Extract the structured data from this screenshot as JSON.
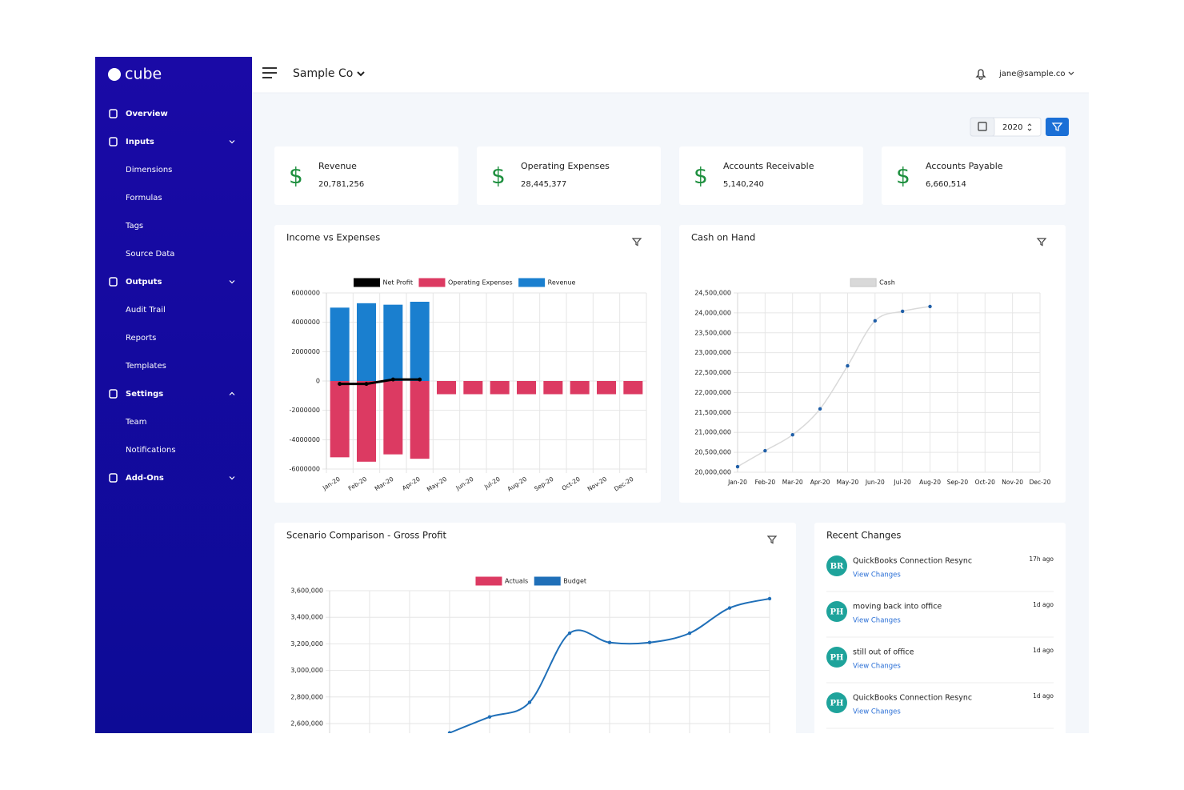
{
  "sidebar": {
    "logo": "cube",
    "sections": [
      {
        "label": "Overview"
      },
      {
        "label": "Inputs",
        "caret": "down",
        "children": [
          "Dimensions",
          "Formulas",
          "Tags",
          "Source Data"
        ]
      },
      {
        "label": "Outputs",
        "caret": "down",
        "children": [
          "Audit Trail",
          "Reports",
          "Templates"
        ]
      },
      {
        "label": "Settings",
        "caret": "up",
        "children": [
          "Team",
          "Notifications"
        ]
      },
      {
        "label": "Add-Ons",
        "caret": "down"
      }
    ]
  },
  "header": {
    "company": "Sample Co",
    "user": "jane@sample.co"
  },
  "toolbar": {
    "year": "2020"
  },
  "kpis": [
    {
      "symbol": "$",
      "label": "Revenue",
      "value": "20,781,256"
    },
    {
      "symbol": "$",
      "label": "Operating Expenses",
      "value": "28,445,377"
    },
    {
      "symbol": "$",
      "label": "Accounts Receivable",
      "value": "5,140,240"
    },
    {
      "symbol": "$",
      "label": "Accounts Payable",
      "value": "6,660,514"
    }
  ],
  "recent_changes": {
    "title": "Recent Changes",
    "items": [
      {
        "initials": "BR",
        "title": "QuickBooks Connection Resync",
        "link": "View Changes",
        "time": "17h ago"
      },
      {
        "initials": "PH",
        "title": "moving back into office",
        "link": "View Changes",
        "time": "1d ago"
      },
      {
        "initials": "PH",
        "title": "still out of office",
        "link": "View Changes",
        "time": "1d ago"
      },
      {
        "initials": "PH",
        "title": "QuickBooks Connection Resync",
        "link": "View Changes",
        "time": "1d ago"
      }
    ]
  },
  "chart_data": [
    {
      "type": "bar",
      "title": "Income vs Expenses",
      "categories": [
        "Jan-20",
        "Feb-20",
        "Mar-20",
        "Apr-20",
        "May-20",
        "Jun-20",
        "Jul-20",
        "Aug-20",
        "Sep-20",
        "Oct-20",
        "Nov-20",
        "Dec-20"
      ],
      "series": [
        {
          "name": "Net Profit",
          "type": "line",
          "color": "#000000",
          "values": [
            -200000,
            -200000,
            100000,
            100000,
            null,
            null,
            null,
            null,
            null,
            null,
            null,
            null
          ]
        },
        {
          "name": "Operating Expenses",
          "type": "bar",
          "color": "#dc3a62",
          "values": [
            -5200000,
            -5500000,
            -5000000,
            -5300000,
            -900000,
            -900000,
            -900000,
            -900000,
            -900000,
            -900000,
            -900000,
            -900000
          ]
        },
        {
          "name": "Revenue",
          "type": "bar",
          "color": "#1a7fcf",
          "values": [
            5000000,
            5300000,
            5200000,
            5400000,
            null,
            null,
            null,
            null,
            null,
            null,
            null,
            null
          ]
        }
      ],
      "ylim": [
        -6000000,
        6000000
      ],
      "yticks": [
        6000000,
        4000000,
        2000000,
        0,
        -2000000,
        -4000000,
        -6000000
      ],
      "grid": true,
      "legend": "top"
    },
    {
      "type": "line",
      "title": "Cash on Hand",
      "categories": [
        "Jan-20",
        "Feb-20",
        "Mar-20",
        "Apr-20",
        "May-20",
        "Jun-20",
        "Jul-20",
        "Aug-20",
        "Sep-20",
        "Oct-20",
        "Nov-20",
        "Dec-20"
      ],
      "series": [
        {
          "name": "Cash",
          "color": "#d9d9d9",
          "point_color": "#1f5fa8",
          "values": [
            20140000,
            20540000,
            20940000,
            21590000,
            22670000,
            23800000,
            24040000,
            24160000,
            null,
            null,
            null,
            null
          ]
        }
      ],
      "ylim": [
        20000000,
        24500000
      ],
      "yticks": [
        {
          "value": 24500000,
          "label": "24,500,000"
        },
        {
          "value": 24000000,
          "label": "24,000,000"
        },
        {
          "value": 23500000,
          "label": "23,500,000"
        },
        {
          "value": 23000000,
          "label": "23,000,000"
        },
        {
          "value": 22500000,
          "label": "22,500,000"
        },
        {
          "value": 22000000,
          "label": "22,000,000"
        },
        {
          "value": 21500000,
          "label": "21,500,000"
        },
        {
          "value": 21000000,
          "label": "21,000,000"
        },
        {
          "value": 20500000,
          "label": "20,500,000"
        },
        {
          "value": 20000000,
          "label": "20,000,000"
        }
      ],
      "grid": true,
      "smooth": true,
      "legend": "top"
    },
    {
      "type": "line",
      "title": "Scenario Comparison - Gross Profit",
      "categories": [
        null,
        null,
        null,
        null,
        null,
        null,
        null,
        null,
        null,
        null,
        null,
        null
      ],
      "series": [
        {
          "name": "Actuals",
          "color": "#dc3a62",
          "values": [
            null,
            null,
            null,
            null,
            null,
            null,
            null,
            null,
            null,
            null,
            null,
            null
          ]
        },
        {
          "name": "Budget",
          "color": "#1f6fb8",
          "point_color": "#1f6fb8",
          "values": [
            null,
            null,
            null,
            2530000,
            2650000,
            2760000,
            3280000,
            3210000,
            3210000,
            3280000,
            3470000,
            3540000
          ]
        }
      ],
      "ylim": [
        2600000,
        3600000
      ],
      "yticks": [
        {
          "value": 3600000,
          "label": "3,600,000"
        },
        {
          "value": 3400000,
          "label": "3,400,000"
        },
        {
          "value": 3200000,
          "label": "3,200,000"
        },
        {
          "value": 3000000,
          "label": "3,000,000"
        },
        {
          "value": 2800000,
          "label": "2,800,000"
        },
        {
          "value": 2600000,
          "label": "2,600,000"
        }
      ],
      "grid": true,
      "smooth": true,
      "legend": "top"
    }
  ]
}
